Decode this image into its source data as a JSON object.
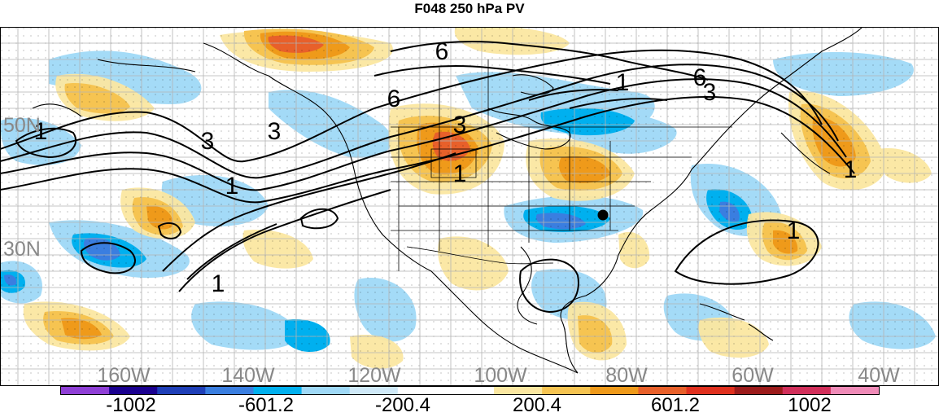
{
  "title": "F048 250 hPa PV",
  "lat_labels": [
    "50N",
    "30N"
  ],
  "lon_labels": [
    "160W",
    "140W",
    "120W",
    "100W",
    "80W",
    "60W",
    "40W"
  ],
  "contour_labels": [
    "6",
    "6",
    "6",
    "3",
    "3",
    "3",
    "3",
    "1",
    "1",
    "1",
    "1",
    "1",
    "1",
    "1"
  ],
  "colorbar": {
    "colors": [
      "#8f3fd6",
      "#1a008f",
      "#1f3fb8",
      "#3a7ee0",
      "#00b0ef",
      "#9fd9f7",
      "#cfe9f8",
      "#ffffff",
      "#ffffff",
      "#fbe7a1",
      "#f6c451",
      "#ef9a1a",
      "#e8602a",
      "#e0301e",
      "#9c1b1b",
      "#d12f5a",
      "#f08bb8"
    ],
    "labels": [
      "-1002",
      "-601.2",
      "-200.4",
      "200.4",
      "601.2",
      "1002"
    ]
  },
  "legend_colors": {
    "map_background": "#ffffff",
    "grid": "#b3b3b3",
    "contours": "#000000",
    "coastlines": "#000000",
    "axis_labels": "#888888"
  }
}
